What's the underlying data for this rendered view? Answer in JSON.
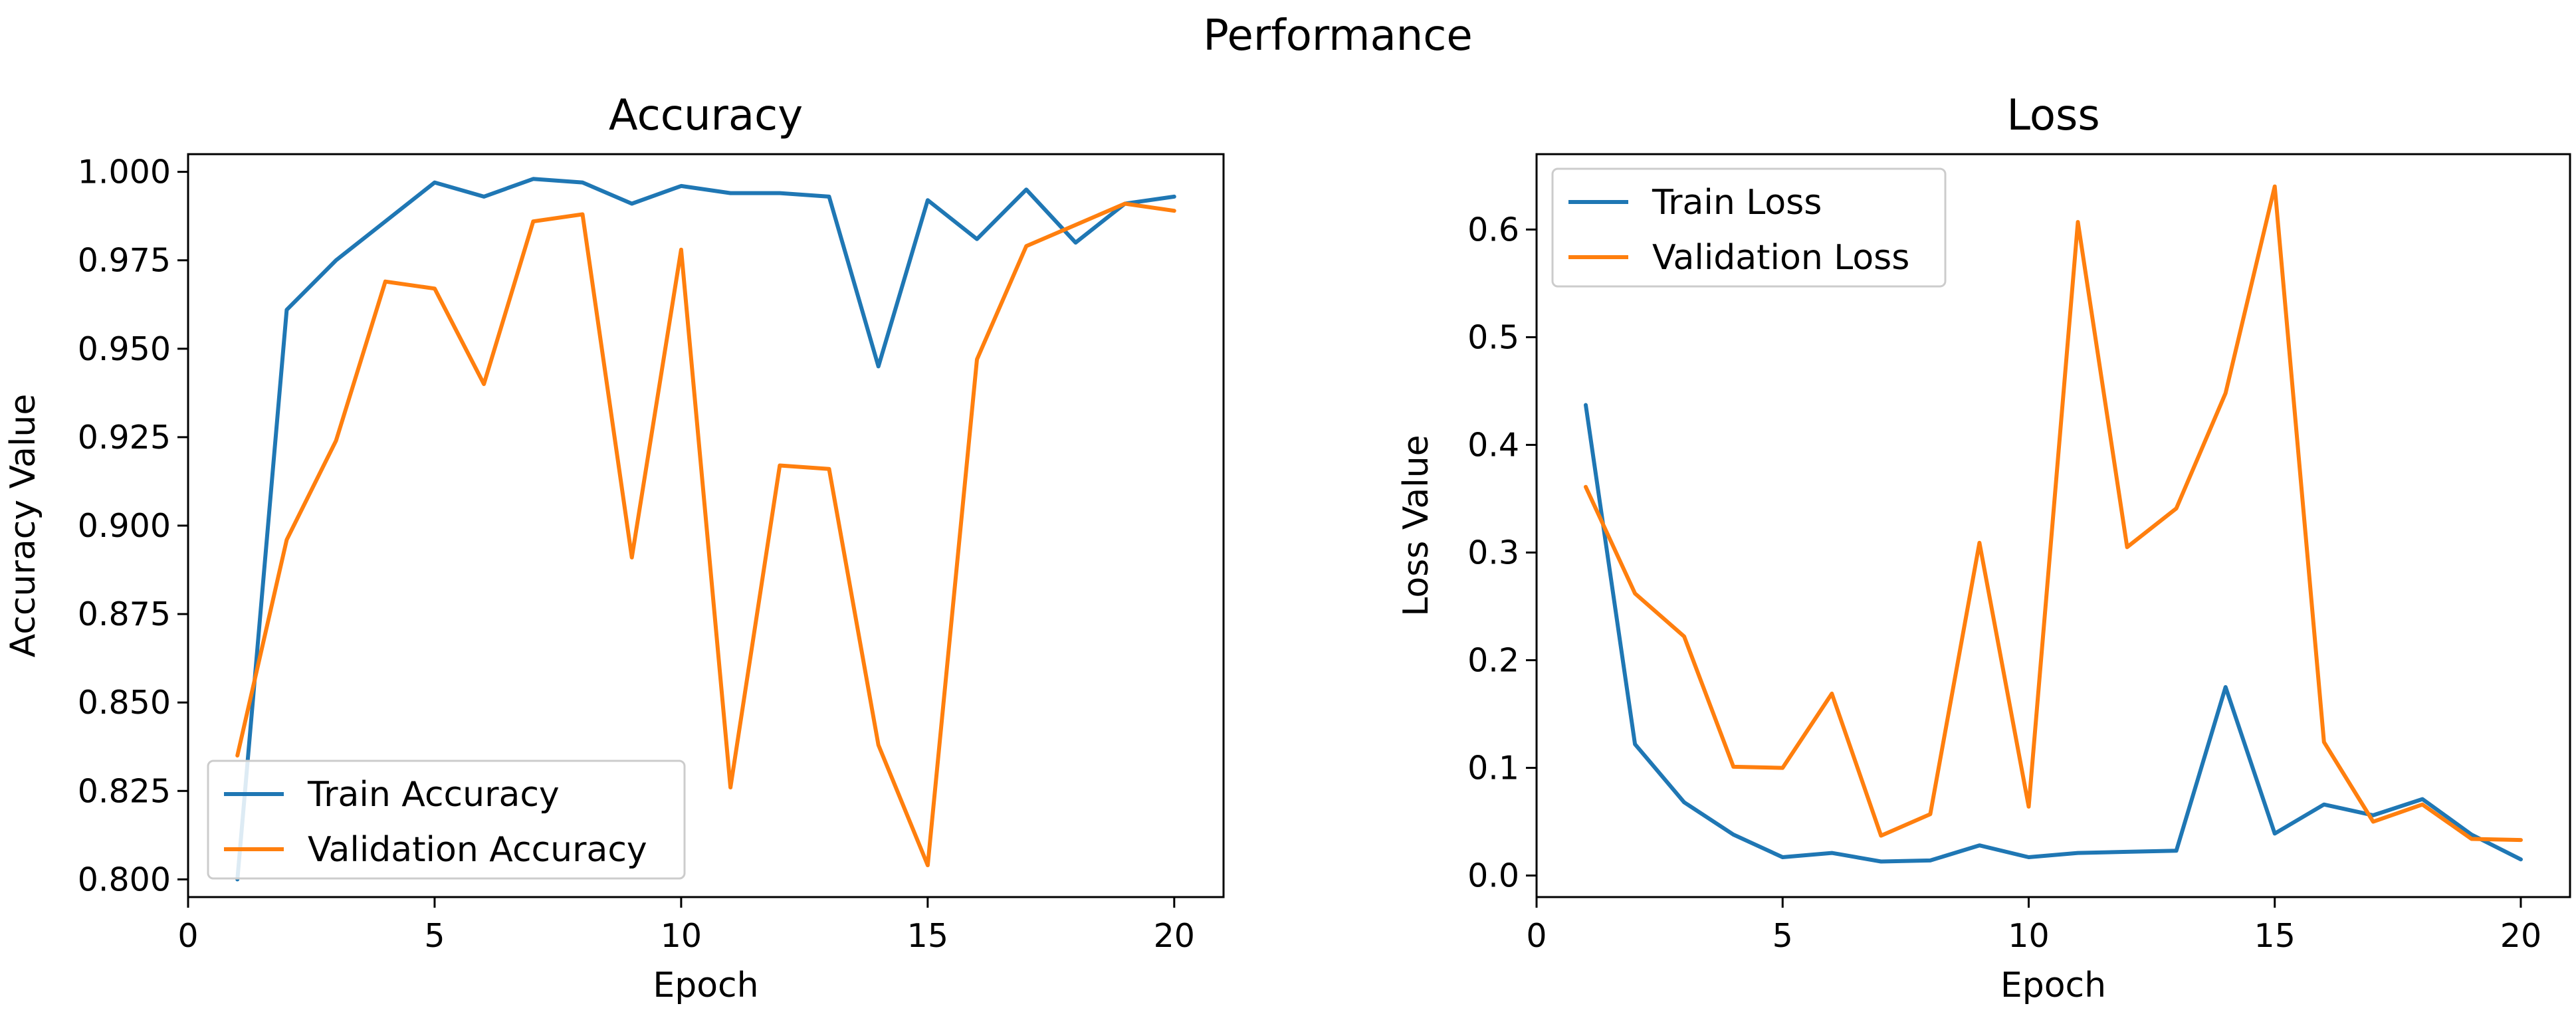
{
  "figure": {
    "suptitle": "Performance"
  },
  "colors": {
    "train": "#1f77b4",
    "validation": "#ff7f0e"
  },
  "chart_data": [
    {
      "type": "line",
      "title": "Accuracy",
      "xlabel": "Epoch",
      "ylabel": "Accuracy Value",
      "xlim": [
        0,
        21
      ],
      "ylim": [
        0.795,
        1.005
      ],
      "xticks": [
        0,
        5,
        10,
        15,
        20
      ],
      "xtick_labels": [
        "0",
        "5",
        "10",
        "15",
        "20"
      ],
      "yticks": [
        0.8,
        0.825,
        0.85,
        0.875,
        0.9,
        0.925,
        0.95,
        0.975,
        1.0
      ],
      "ytick_labels": [
        "0.800",
        "0.825",
        "0.850",
        "0.875",
        "0.900",
        "0.925",
        "0.950",
        "0.975",
        "1.000"
      ],
      "grid": false,
      "legend_position": "lower-left",
      "x": [
        1,
        2,
        3,
        4,
        5,
        6,
        7,
        8,
        9,
        10,
        11,
        12,
        13,
        14,
        15,
        16,
        17,
        18,
        19,
        20
      ],
      "series": [
        {
          "name": "Train Accuracy",
          "color": "#1f77b4",
          "values": [
            0.8,
            0.961,
            0.975,
            0.986,
            0.997,
            0.993,
            0.998,
            0.997,
            0.991,
            0.996,
            0.994,
            0.994,
            0.993,
            0.945,
            0.992,
            0.981,
            0.995,
            0.98,
            0.991,
            0.993
          ]
        },
        {
          "name": "Validation Accuracy",
          "color": "#ff7f0e",
          "values": [
            0.835,
            0.896,
            0.924,
            0.969,
            0.967,
            0.94,
            0.986,
            0.988,
            0.891,
            0.978,
            0.826,
            0.917,
            0.916,
            0.838,
            0.804,
            0.947,
            0.979,
            0.985,
            0.991,
            0.989
          ]
        }
      ]
    },
    {
      "type": "line",
      "title": "Loss",
      "xlabel": "Epoch",
      "ylabel": "Loss Value",
      "xlim": [
        0,
        21
      ],
      "ylim": [
        -0.02,
        0.67
      ],
      "xticks": [
        0,
        5,
        10,
        15,
        20
      ],
      "xtick_labels": [
        "0",
        "5",
        "10",
        "15",
        "20"
      ],
      "yticks": [
        0.0,
        0.1,
        0.2,
        0.3,
        0.4,
        0.5,
        0.6
      ],
      "ytick_labels": [
        "0.0",
        "0.1",
        "0.2",
        "0.3",
        "0.4",
        "0.5",
        "0.6"
      ],
      "grid": false,
      "legend_position": "upper-left",
      "x": [
        1,
        2,
        3,
        4,
        5,
        6,
        7,
        8,
        9,
        10,
        11,
        12,
        13,
        14,
        15,
        16,
        17,
        18,
        19,
        20
      ],
      "series": [
        {
          "name": "Train Loss",
          "color": "#1f77b4",
          "values": [
            0.437,
            0.122,
            0.068,
            0.038,
            0.017,
            0.021,
            0.013,
            0.014,
            0.028,
            0.017,
            0.021,
            0.022,
            0.023,
            0.175,
            0.039,
            0.066,
            0.056,
            0.071,
            0.038,
            0.015
          ]
        },
        {
          "name": "Validation Loss",
          "color": "#ff7f0e",
          "values": [
            0.361,
            0.262,
            0.222,
            0.101,
            0.1,
            0.169,
            0.037,
            0.057,
            0.309,
            0.064,
            0.607,
            0.305,
            0.341,
            0.448,
            0.64,
            0.124,
            0.05,
            0.066,
            0.034,
            0.033
          ]
        }
      ]
    }
  ]
}
